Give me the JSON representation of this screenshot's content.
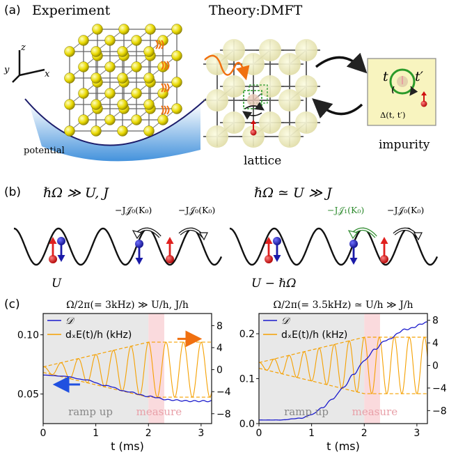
{
  "panel_a": {
    "label": "(a)",
    "experiment_title": "Experiment",
    "theory_title": "Theory:DMFT",
    "axis_x": "x",
    "axis_y": "y",
    "axis_z": "z",
    "potential_label": "potential",
    "lattice_label": "lattice",
    "impurity_label": "impurity",
    "impurity_t": "t",
    "impurity_tprime": "t′",
    "impurity_delta": "Δ(t, t′)"
  },
  "panel_b": {
    "label": "(b)",
    "left_condition": "ℏΩ ≫ U, J",
    "right_condition": "ℏΩ ≃ U ≫ J",
    "left_hop1": "−J𝒥₀(K₀)",
    "left_hop2": "−J𝒥₀(K₀)",
    "right_hop1": "−J𝒥₁(K₀)",
    "right_hop2": "−J𝒥₀(K₀)",
    "left_interaction": "U",
    "right_interaction": "U − ℏΩ",
    "colors": {
      "hop_green": "#2e8b2e",
      "spin_up": "#e0201e",
      "spin_down": "#1a1aa8"
    }
  },
  "panel_c": {
    "label": "(c)",
    "ramp_label": "ramp up",
    "measure_label": "measure",
    "colors": {
      "doublon": "#1a1acc",
      "drive": "#f5a000",
      "ramp_shade": "#e8e8e8",
      "measure_shade": "#fadadd",
      "arrow_orange": "#f07010",
      "arrow_blue": "#2050e0"
    }
  },
  "chart_data": [
    {
      "type": "line",
      "title": "Ω/2π(= 3kHz) ≫ U/h, J/h",
      "xlabel": "t (ms)",
      "ylabel": "",
      "xlim": [
        0,
        3.2
      ],
      "ylim": [
        0.025,
        0.118
      ],
      "y2lim": [
        -9.8,
        10.2
      ],
      "x_ticks": [
        0,
        1,
        2,
        3
      ],
      "x_tick_labels": [
        "0",
        "1",
        "2",
        "3"
      ],
      "y_ticks": [
        0.05,
        0.1
      ],
      "y_tick_labels": [
        "0.05",
        "0.10"
      ],
      "y2_ticks": [
        8,
        4,
        0,
        -4,
        -8
      ],
      "y2_tick_labels": [
        "8",
        "4",
        "0",
        "−4",
        "−8"
      ],
      "ramp_region": [
        0,
        2.0
      ],
      "measure_region": [
        2.0,
        2.3
      ],
      "legend": [
        "𝒟",
        "dₓE(t)/h (kHz)"
      ],
      "legend_position": "top-left",
      "drive_freq_khz": 3.0,
      "drive_amp_start_khz": 0.5,
      "drive_amp_end_khz": 5.0,
      "series": [
        {
          "name": "𝒟",
          "axis": "left",
          "x": [
            0,
            0.4,
            0.8,
            1.2,
            1.6,
            2.0,
            2.4,
            2.8,
            3.2
          ],
          "y": [
            0.066,
            0.065,
            0.062,
            0.057,
            0.052,
            0.048,
            0.045,
            0.044,
            0.044
          ]
        },
        {
          "name": "dₓE(t)/h (kHz)",
          "axis": "right",
          "kind": "oscillating_drive"
        }
      ]
    },
    {
      "type": "line",
      "title": "Ω/2π(= 3.5kHz) ≃ U/h ≫ J/h",
      "xlabel": "t (ms)",
      "ylabel": "",
      "xlim": [
        0,
        3.2
      ],
      "ylim": [
        0.0,
        0.245
      ],
      "y2lim": [
        -10.3,
        9.2
      ],
      "x_ticks": [
        0,
        1,
        2,
        3
      ],
      "x_tick_labels": [
        "0",
        "1",
        "2",
        "3"
      ],
      "y_ticks": [
        0.0,
        0.1,
        0.2
      ],
      "y_tick_labels": [
        "0.0",
        "0.1",
        "0.2"
      ],
      "y2_ticks": [
        8,
        4,
        0,
        -4,
        -8
      ],
      "y2_tick_labels": [
        "8",
        "4",
        "0",
        "−4",
        "−8"
      ],
      "ramp_region": [
        0,
        2.0
      ],
      "measure_region": [
        2.0,
        2.3
      ],
      "legend": [
        "𝒟",
        "dₓE(t)/h (kHz)"
      ],
      "legend_position": "top-left",
      "drive_freq_khz": 3.5,
      "drive_amp_start_khz": 0.5,
      "drive_amp_end_khz": 5.0,
      "series": [
        {
          "name": "𝒟",
          "axis": "left",
          "x": [
            0,
            0.4,
            0.8,
            1.0,
            1.2,
            1.4,
            1.6,
            1.8,
            2.0,
            2.2,
            2.4,
            2.8,
            3.2
          ],
          "y": [
            0.008,
            0.008,
            0.012,
            0.02,
            0.035,
            0.055,
            0.08,
            0.11,
            0.14,
            0.165,
            0.185,
            0.21,
            0.225
          ]
        },
        {
          "name": "dₓE(t)/h (kHz)",
          "axis": "right",
          "kind": "oscillating_drive"
        }
      ]
    }
  ]
}
